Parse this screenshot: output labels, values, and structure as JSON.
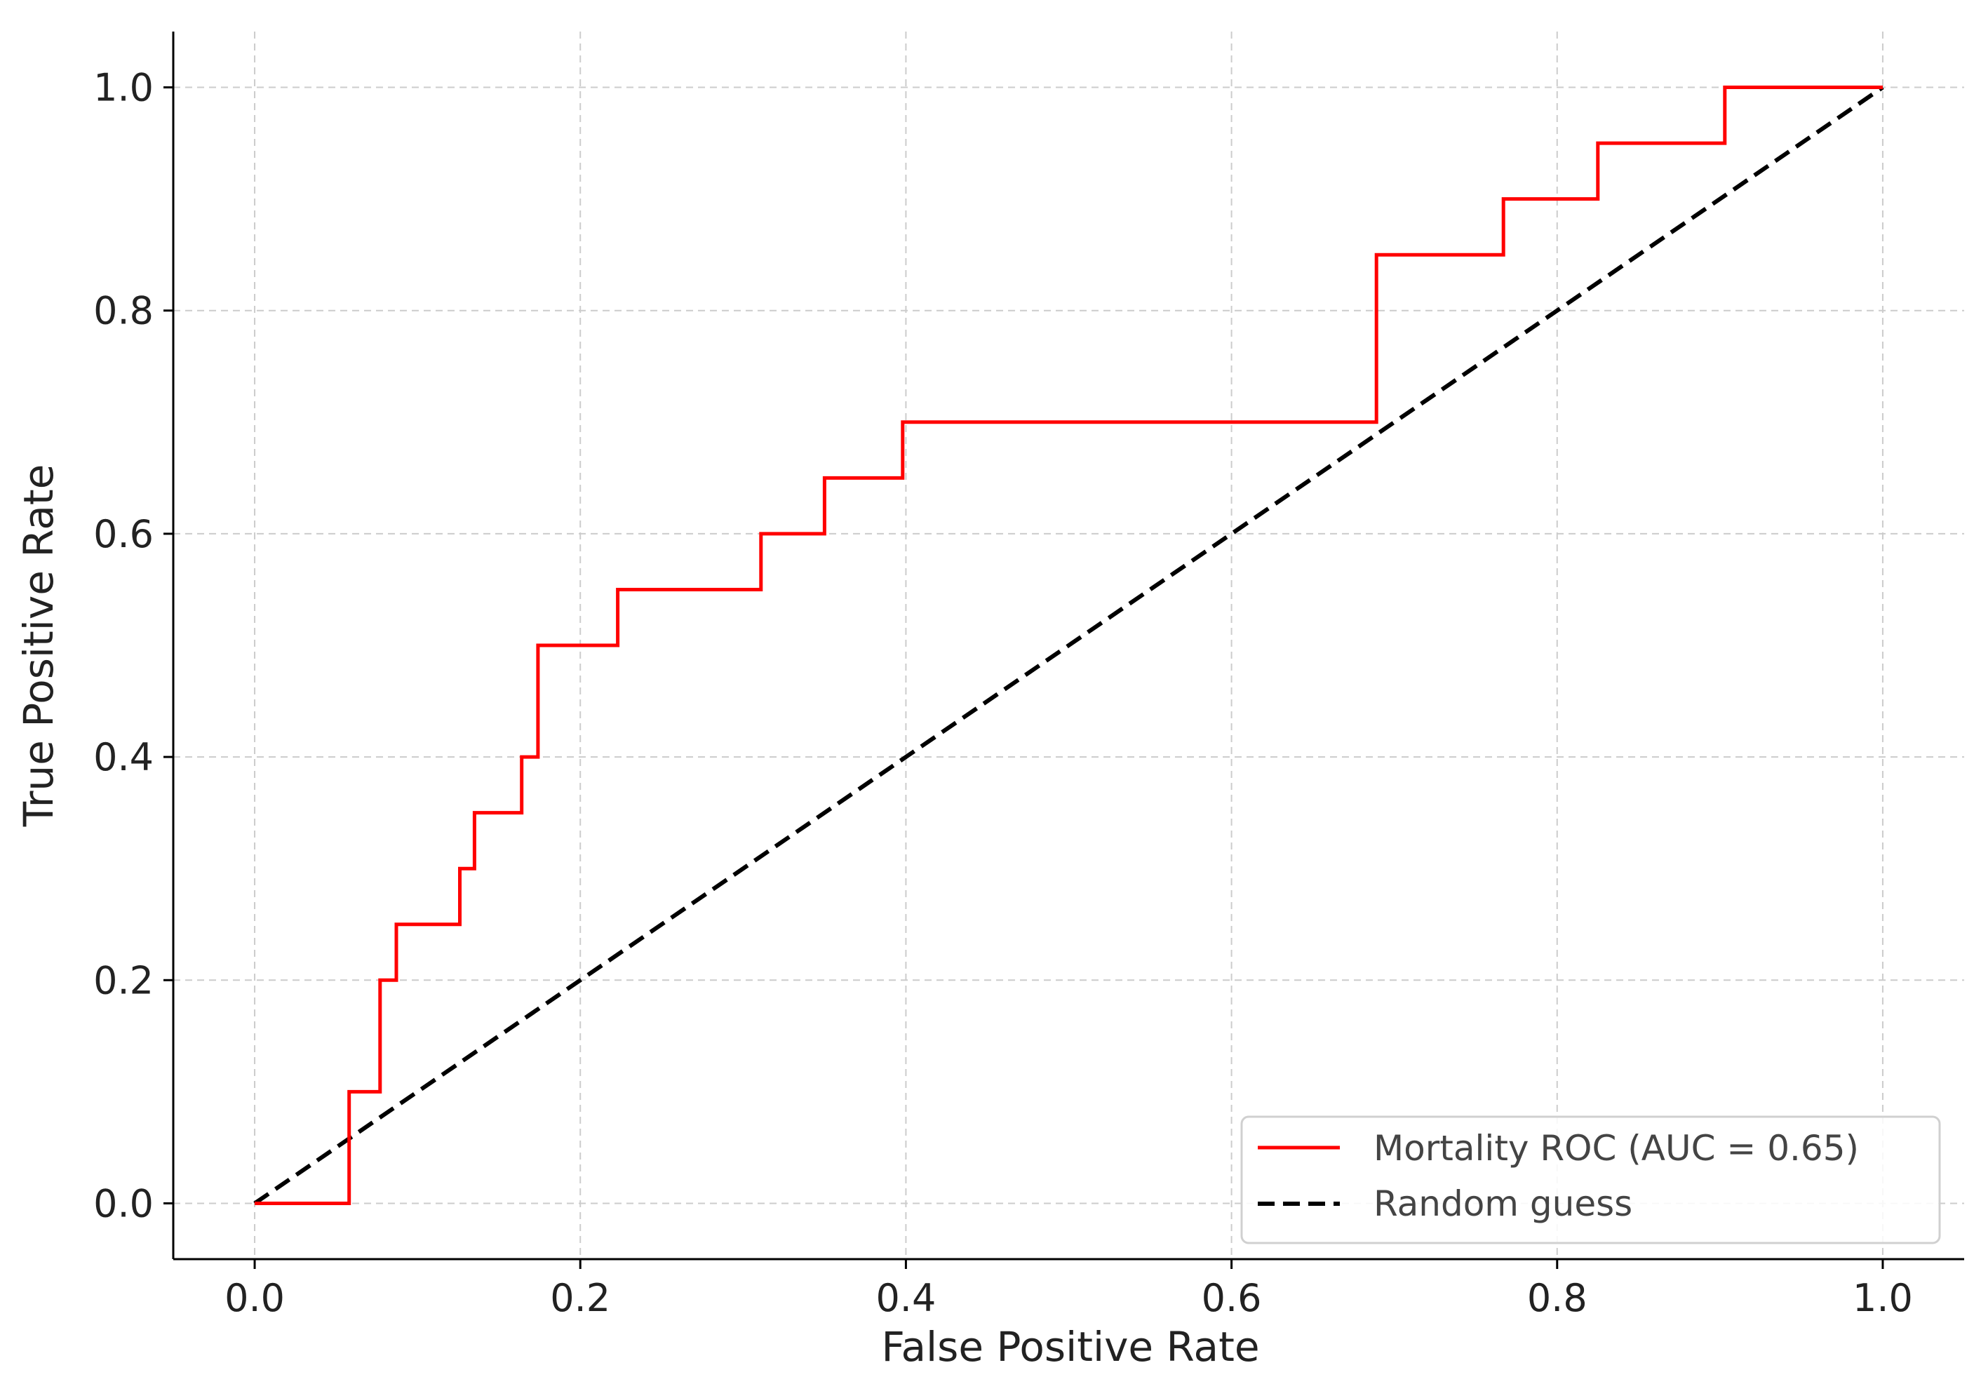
{
  "chart_data": {
    "type": "line",
    "title": "",
    "xlabel": "False Positive Rate",
    "ylabel": "True Positive Rate",
    "xlim": [
      -0.05,
      1.05
    ],
    "ylim": [
      -0.05,
      1.05
    ],
    "xticks": [
      "0.0",
      "0.2",
      "0.4",
      "0.6",
      "0.8",
      "1.0"
    ],
    "yticks": [
      "0.0",
      "0.2",
      "0.4",
      "0.6",
      "0.8",
      "1.0"
    ],
    "grid": true,
    "legend_position": "lower-right",
    "series": [
      {
        "name": "Mortality ROC (AUC = 0.65)",
        "color": "#ff0000",
        "style": "solid",
        "step": true,
        "points": [
          [
            0.0,
            0.0
          ],
          [
            0.058,
            0.0
          ],
          [
            0.058,
            0.1
          ],
          [
            0.077,
            0.1
          ],
          [
            0.077,
            0.2
          ],
          [
            0.087,
            0.2
          ],
          [
            0.087,
            0.25
          ],
          [
            0.126,
            0.25
          ],
          [
            0.126,
            0.3
          ],
          [
            0.135,
            0.3
          ],
          [
            0.135,
            0.35
          ],
          [
            0.164,
            0.35
          ],
          [
            0.164,
            0.4
          ],
          [
            0.174,
            0.4
          ],
          [
            0.174,
            0.5
          ],
          [
            0.223,
            0.5
          ],
          [
            0.223,
            0.55
          ],
          [
            0.311,
            0.55
          ],
          [
            0.311,
            0.6
          ],
          [
            0.35,
            0.6
          ],
          [
            0.35,
            0.65
          ],
          [
            0.398,
            0.65
          ],
          [
            0.398,
            0.7
          ],
          [
            0.689,
            0.7
          ],
          [
            0.689,
            0.85
          ],
          [
            0.767,
            0.85
          ],
          [
            0.767,
            0.9
          ],
          [
            0.825,
            0.9
          ],
          [
            0.825,
            0.95
          ],
          [
            0.903,
            0.95
          ],
          [
            0.903,
            1.0
          ],
          [
            1.0,
            1.0
          ]
        ]
      },
      {
        "name": "Random guess",
        "color": "#000000",
        "style": "dashed",
        "step": false,
        "points": [
          [
            0.0,
            0.0
          ],
          [
            1.0,
            1.0
          ]
        ]
      }
    ]
  }
}
